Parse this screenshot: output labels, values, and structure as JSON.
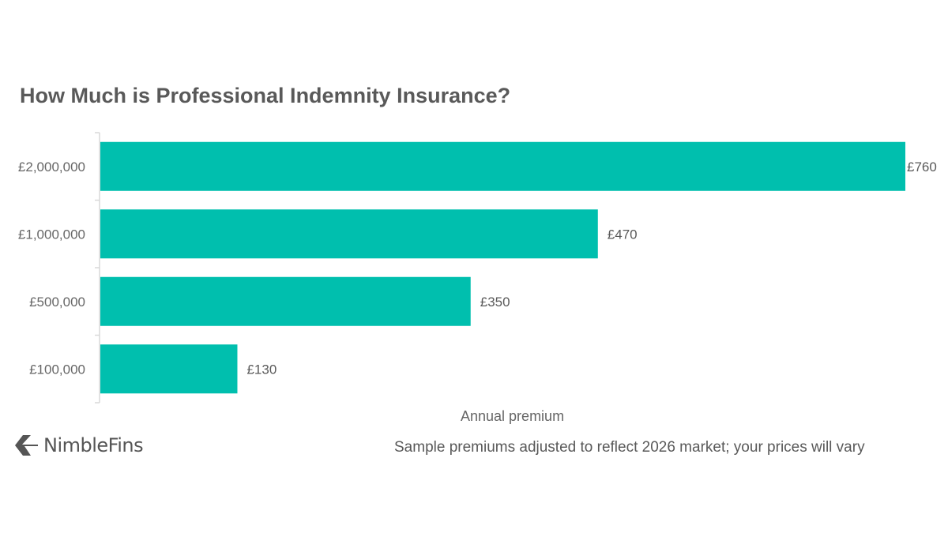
{
  "brand": {
    "name": "NimbleFins"
  },
  "footnote": "Sample premiums adjusted to reflect  2026 market; your prices will vary",
  "chart_data": {
    "type": "bar",
    "orientation": "horizontal",
    "title": "How Much is Professional Indemnity Insurance?",
    "xlabel": "Annual premium",
    "ylabel": "",
    "categories": [
      "£2,000,000",
      "£1,000,000",
      "£500,000",
      "£100,000"
    ],
    "values": [
      760,
      470,
      350,
      130
    ],
    "data_labels": [
      "£760",
      "£470",
      "£350",
      "£130"
    ],
    "xlim": [
      0,
      760
    ],
    "grid": false,
    "legend": "none",
    "bar_color": "#00BFAE",
    "axis_color": "#D9D9D9"
  }
}
